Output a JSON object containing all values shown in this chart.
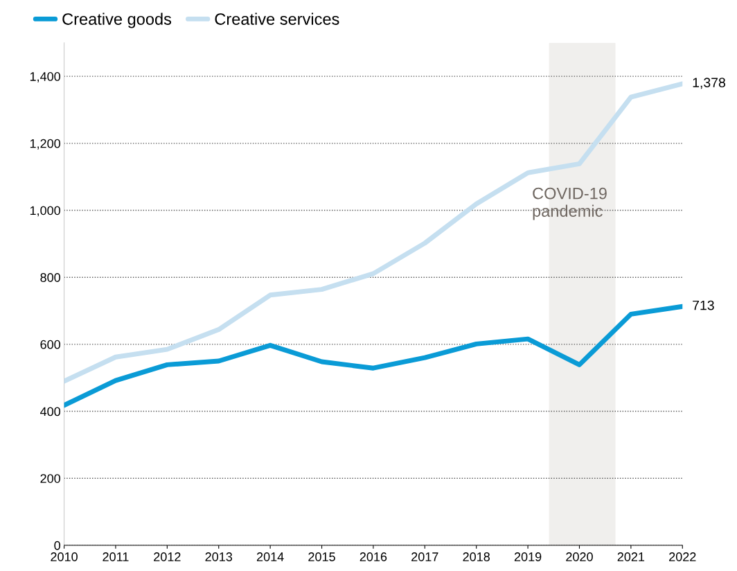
{
  "chart_data": {
    "type": "line",
    "x": [
      2010,
      2011,
      2012,
      2013,
      2014,
      2015,
      2016,
      2017,
      2018,
      2019,
      2020,
      2021,
      2022
    ],
    "series": [
      {
        "name": "Creative goods",
        "color": "#0a9bd6",
        "values": [
          418,
          492,
          539,
          550,
          597,
          548,
          529,
          560,
          601,
          616,
          539,
          690,
          713
        ],
        "value_labels": [
          null,
          null,
          null,
          null,
          null,
          null,
          null,
          null,
          null,
          null,
          null,
          null,
          "713"
        ]
      },
      {
        "name": "Creative services",
        "color": "#c5dff0",
        "values": [
          490,
          562,
          585,
          644,
          747,
          764,
          811,
          902,
          1019,
          1112,
          1139,
          1338,
          1378
        ],
        "value_labels": [
          null,
          null,
          null,
          null,
          null,
          null,
          null,
          null,
          null,
          null,
          null,
          null,
          "1,378"
        ]
      }
    ],
    "xlim": [
      2010,
      2022
    ],
    "xticks": [
      2010,
      2011,
      2012,
      2013,
      2014,
      2015,
      2016,
      2017,
      2018,
      2019,
      2020,
      2021,
      2022
    ],
    "ylim": [
      0,
      1500
    ],
    "yticks": [
      {
        "value": 0,
        "label": "0"
      },
      {
        "value": 200,
        "label": "200"
      },
      {
        "value": 400,
        "label": "400"
      },
      {
        "value": 600,
        "label": "600"
      },
      {
        "value": 800,
        "label": "800"
      },
      {
        "value": 1000,
        "label": "1,000"
      },
      {
        "value": 1200,
        "label": "1,200"
      },
      {
        "value": 1400,
        "label": "1,400"
      }
    ],
    "bands": [
      {
        "axis": "x",
        "from": 2019.41,
        "to": 2020.7,
        "label": "COVID-19\npandemic",
        "color": "#f0efed"
      }
    ],
    "grid": "y",
    "legend": "top left",
    "marker": "none",
    "line_style": "solid"
  }
}
